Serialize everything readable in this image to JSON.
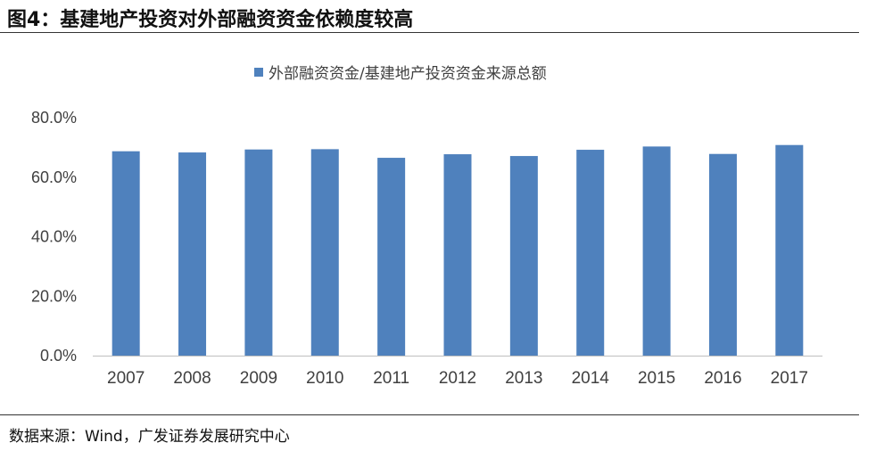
{
  "figure": {
    "title": "图4：基建地产投资对外部融资资金依赖度较高",
    "source": "数据来源：Wind，广发证券发展研究中心"
  },
  "colors": {
    "bar": "#4F81BD",
    "axis": "#BFBFBF",
    "text": "#404040"
  },
  "chart_data": {
    "type": "bar",
    "title": "",
    "xlabel": "",
    "ylabel": "",
    "categories": [
      "2007",
      "2008",
      "2009",
      "2010",
      "2011",
      "2012",
      "2013",
      "2014",
      "2015",
      "2016",
      "2017"
    ],
    "series": [
      {
        "name": "外部融资资金/基建地产投资资金来源总额",
        "values": [
          68.7,
          68.3,
          69.3,
          69.4,
          66.5,
          67.7,
          67.1,
          69.2,
          70.3,
          67.8,
          70.8
        ]
      }
    ],
    "ylim": [
      0,
      80
    ],
    "yticks": [
      "0.0%",
      "20.0%",
      "40.0%",
      "60.0%",
      "80.0%"
    ],
    "grid": false,
    "legend_position": "top-center"
  }
}
